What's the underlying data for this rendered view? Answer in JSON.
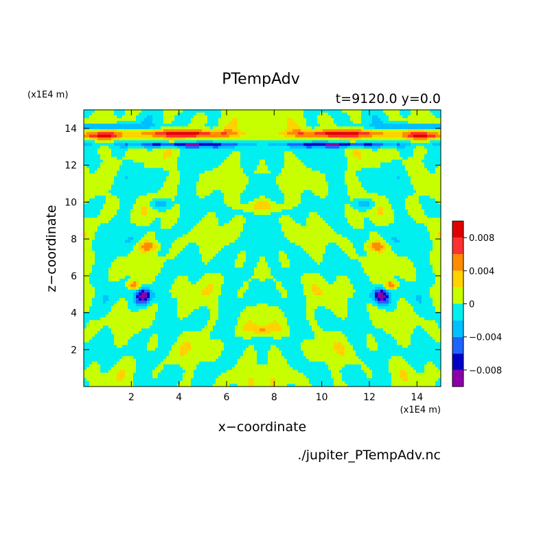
{
  "chart_data": {
    "type": "heatmap",
    "title": "PTempAdv",
    "subtitle": "t=9120.0 y=0.0",
    "xlabel": "x−coordinate",
    "ylabel": "z−coordinate",
    "x_unit_label": "(x1E4 m)",
    "y_unit_label": "(x1E4 m)",
    "file_label": "./jupiter_PTempAdv.nc",
    "xlim": [
      0,
      15
    ],
    "ylim": [
      0,
      15
    ],
    "x_ticks": [
      2,
      4,
      6,
      8,
      10,
      12,
      14
    ],
    "x_tick_labels": [
      "2",
      "4",
      "6",
      "8",
      "10",
      "12",
      "14"
    ],
    "y_ticks": [
      2,
      4,
      6,
      8,
      10,
      12,
      14
    ],
    "y_tick_labels": [
      "2",
      "4",
      "6",
      "8",
      "10",
      "12",
      "14"
    ],
    "colorbar": {
      "levels": [
        -0.01,
        -0.008,
        -0.006,
        -0.004,
        -0.002,
        0,
        0.002,
        0.004,
        0.006,
        0.008,
        0.01
      ],
      "colors": [
        "#8b00a8",
        "#0000c8",
        "#1e64ff",
        "#00c0ff",
        "#00f0f0",
        "#c8ff00",
        "#ffd200",
        "#ff8c00",
        "#ff3030",
        "#e00000",
        "#ffb4b4"
      ],
      "tick_values": [
        0.008,
        0.004,
        0,
        -0.004,
        -0.008
      ],
      "tick_labels": [
        "0.008",
        "0.004",
        "0",
        "−0.004",
        "−0.008"
      ]
    },
    "colors": {
      "frame": "#000000",
      "background": "#ffffff"
    }
  }
}
